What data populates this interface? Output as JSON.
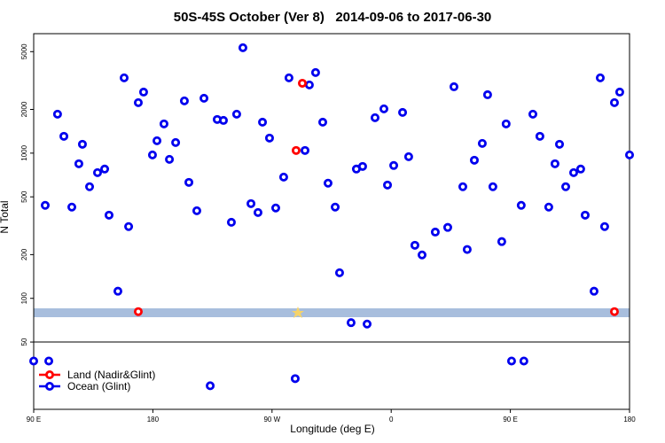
{
  "chart_data": {
    "type": "scatter",
    "title": "50S-45S October (Ver 8)   2014-09-06 to 2017-06-30",
    "x_label": "Longitude (deg E)",
    "y_label": "N Total",
    "xlim": [
      90,
      540
    ],
    "xticks": [
      {
        "value": 90,
        "label": "90 E"
      },
      180,
      {
        "value": 270,
        "label": "90 W"
      },
      {
        "value": 360,
        "label": "0"
      },
      {
        "value": 450,
        "label": "90 E"
      },
      {
        "value": 540,
        "label": "180"
      }
    ],
    "ylim": [
      17.2,
      6650
    ],
    "yscale": "log",
    "yticks": [
      50,
      100,
      200,
      500,
      1000,
      2000,
      5000
    ],
    "legend": "bottom-left",
    "series": [
      {
        "name": "Land (Nadir&Glint)",
        "color": "#ff0000",
        "x": [
          169,
          288.2,
          292.9,
          528.6
        ],
        "values": [
          81,
          1043,
          3030,
          81
        ]
      },
      {
        "name": "Ocean (Glint)",
        "color": "#0000ee",
        "x": [
          90,
          101.4,
          98.7,
          108,
          112.8,
          118.8,
          124.1,
          126.8,
          132.2,
          138.2,
          143.6,
          146.9,
          153.6,
          158.3,
          161.7,
          169,
          173,
          179.7,
          183.1,
          188.4,
          192.5,
          197.2,
          203.8,
          207.2,
          213.2,
          218.6,
          223.3,
          228.6,
          233.3,
          239.3,
          243.3,
          248,
          254.1,
          259.4,
          262.8,
          268.1,
          272.8,
          278.8,
          282.8,
          287.5,
          294.9,
          298.2,
          302.9,
          308.3,
          312.3,
          317.7,
          321,
          329.7,
          333.7,
          338.4,
          341.8,
          347.8,
          354.5,
          357.2,
          361.9,
          368.6,
          373.2,
          377.9,
          383.3,
          393.3,
          402.7,
          407.4,
          414.1,
          417.4,
          422.8,
          428.8,
          432.8,
          436.8,
          443.5,
          446.8,
          450.9,
          458.2,
          460.2,
          467,
          472.3,
          479,
          483.7,
          487.1,
          491.8,
          497.8,
          503.1,
          506.5,
          513.2,
          517.9,
          521.2,
          528.6,
          532.6,
          540
        ],
        "values": [
          37,
          37,
          437,
          1855,
          1306,
          425,
          845,
          1151,
          587,
          734,
          777,
          374,
          112,
          3300,
          312,
          2227,
          2634,
          972,
          1217,
          1590,
          906,
          1183,
          2290,
          629,
          401,
          2388,
          25,
          1706,
          1680,
          334,
          1855,
          5320,
          449,
          390,
          1634,
          1270,
          419,
          684,
          3300,
          28,
          1043,
          2950,
          3590,
          1634,
          621,
          425,
          150,
          68,
          777,
          810,
          66.5,
          1754,
          2018,
          603,
          822,
          1907,
          945,
          232,
          199,
          286,
          308,
          2866,
          587,
          217,
          894,
          1167,
          2525,
          587,
          246,
          1590,
          37,
          437,
          37,
          1855,
          1306,
          425,
          845,
          1151,
          587,
          734,
          777,
          374,
          112,
          3300,
          312,
          2227,
          2634,
          972
        ]
      }
    ]
  }
}
